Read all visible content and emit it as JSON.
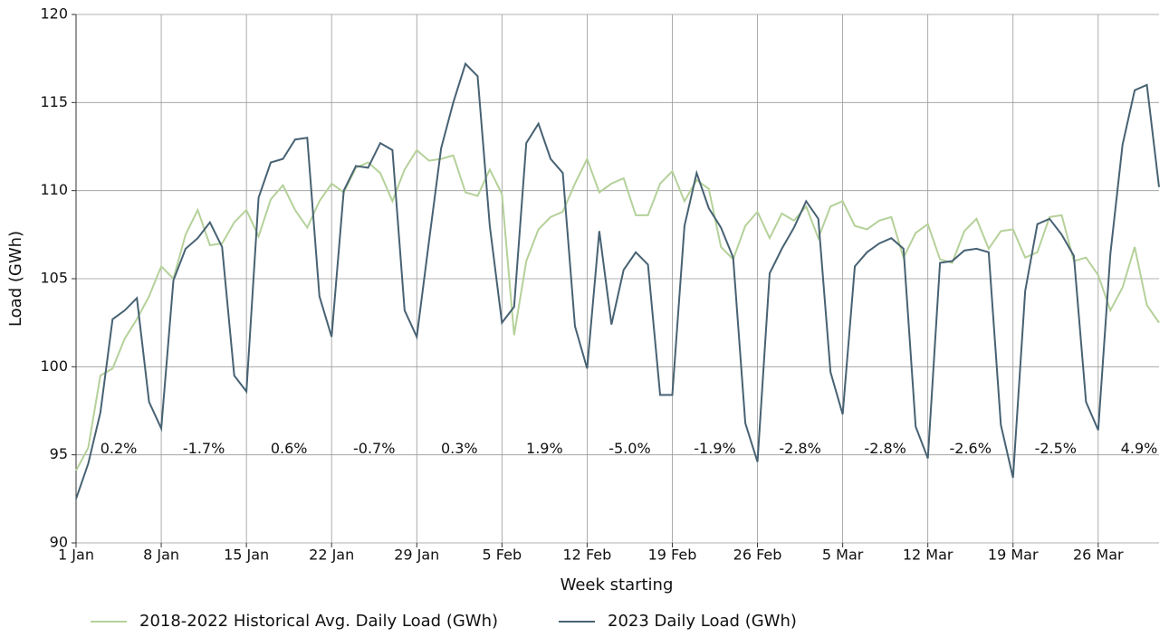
{
  "chart_data": {
    "type": "line",
    "xlabel": "Week starting",
    "ylabel": "Load (GWh)",
    "x": [
      0,
      1,
      2,
      3,
      4,
      5,
      6,
      7,
      8,
      9,
      10,
      11,
      12,
      13,
      14,
      15,
      16,
      17,
      18,
      19,
      20,
      21,
      22,
      23,
      24,
      25,
      26,
      27,
      28,
      29,
      30,
      31,
      32,
      33,
      34,
      35,
      36,
      37,
      38,
      39,
      40,
      41,
      42,
      43,
      44,
      45,
      46,
      47,
      48,
      49,
      50,
      51,
      52,
      53,
      54,
      55,
      56,
      57,
      58,
      59,
      60,
      61,
      62,
      63,
      64,
      65,
      66,
      67,
      68,
      69,
      70,
      71,
      72,
      73,
      74,
      75,
      76,
      77,
      78,
      79,
      80,
      81,
      82,
      83,
      84,
      85,
      86,
      87,
      88,
      89
    ],
    "series": [
      {
        "name": "2018-2022 Historical Avg. Daily Load (GWh)",
        "color": "#b5d19a",
        "values": [
          94.1,
          95.4,
          99.5,
          99.9,
          101.6,
          102.7,
          104.0,
          105.7,
          105.0,
          107.5,
          108.9,
          106.9,
          107.0,
          108.2,
          108.9,
          107.4,
          109.5,
          110.3,
          108.9,
          107.9,
          109.4,
          110.4,
          109.9,
          111.3,
          111.6,
          111.0,
          109.4,
          111.2,
          112.3,
          111.7,
          111.8,
          112.0,
          109.9,
          109.7,
          111.2,
          109.8,
          101.8,
          106.0,
          107.8,
          108.5,
          108.8,
          110.4,
          111.8,
          109.9,
          110.4,
          110.7,
          108.6,
          108.6,
          110.4,
          111.1,
          109.4,
          110.6,
          110.1,
          106.8,
          106.1,
          108.0,
          108.8,
          107.3,
          108.7,
          108.3,
          109.1,
          107.3,
          109.1,
          109.4,
          108.0,
          107.8,
          108.3,
          108.5,
          106.2,
          107.6,
          108.1,
          106.1,
          105.9,
          107.7,
          108.4,
          106.7,
          107.7,
          107.8,
          106.2,
          106.5,
          108.5,
          108.6,
          106.0,
          106.2,
          105.2,
          103.2,
          104.5,
          106.8,
          103.5,
          102.5
        ]
      },
      {
        "name": "2023 Daily Load (GWh)",
        "color": "#476273",
        "values": [
          92.5,
          94.5,
          97.4,
          102.7,
          103.2,
          103.9,
          98.0,
          96.5,
          104.9,
          106.7,
          107.3,
          108.2,
          106.8,
          99.5,
          98.6,
          109.6,
          111.6,
          111.8,
          112.9,
          113.0,
          104.0,
          101.7,
          110.0,
          111.4,
          111.3,
          112.7,
          112.3,
          103.2,
          101.7,
          107.1,
          112.4,
          115.0,
          117.2,
          116.5,
          108.0,
          102.5,
          103.4,
          112.7,
          113.8,
          111.8,
          111.0,
          102.3,
          99.9,
          107.7,
          102.4,
          105.5,
          106.5,
          105.8,
          98.4,
          98.4,
          108.0,
          111.0,
          109.0,
          107.9,
          106.2,
          96.8,
          94.6,
          105.3,
          106.7,
          107.9,
          109.4,
          108.4,
          99.7,
          97.3,
          105.7,
          106.5,
          107.0,
          107.3,
          106.7,
          96.6,
          94.8,
          105.9,
          106.0,
          106.6,
          106.7,
          106.5,
          96.7,
          93.7,
          104.3,
          108.1,
          108.4,
          107.5,
          106.3,
          98.0,
          96.4,
          106.4,
          112.6,
          115.7,
          116.0,
          110.2
        ]
      }
    ],
    "weekly_change_labels": [
      "0.2%",
      "-1.7%",
      "0.6%",
      "-0.7%",
      "0.3%",
      "1.9%",
      "-5.0%",
      "-1.9%",
      "-2.8%",
      "-2.8%",
      "-2.6%",
      "-2.5%",
      "4.9%"
    ],
    "xlim": [
      0,
      89
    ],
    "ylim": [
      90,
      120
    ],
    "xticks": [
      {
        "value": 0,
        "label": "1 Jan"
      },
      {
        "value": 7,
        "label": "8 Jan"
      },
      {
        "value": 14,
        "label": "15 Jan"
      },
      {
        "value": 21,
        "label": "22 Jan"
      },
      {
        "value": 28,
        "label": "29 Jan"
      },
      {
        "value": 35,
        "label": "5 Feb"
      },
      {
        "value": 42,
        "label": "12 Feb"
      },
      {
        "value": 49,
        "label": "19 Feb"
      },
      {
        "value": 56,
        "label": "26 Feb"
      },
      {
        "value": 63,
        "label": "5 Mar"
      },
      {
        "value": 70,
        "label": "12 Mar"
      },
      {
        "value": 77,
        "label": "19 Mar"
      },
      {
        "value": 84,
        "label": "26 Mar"
      }
    ],
    "yticks": [
      90,
      95,
      100,
      105,
      110,
      115,
      120
    ],
    "grid": true,
    "legend": "bottom"
  }
}
